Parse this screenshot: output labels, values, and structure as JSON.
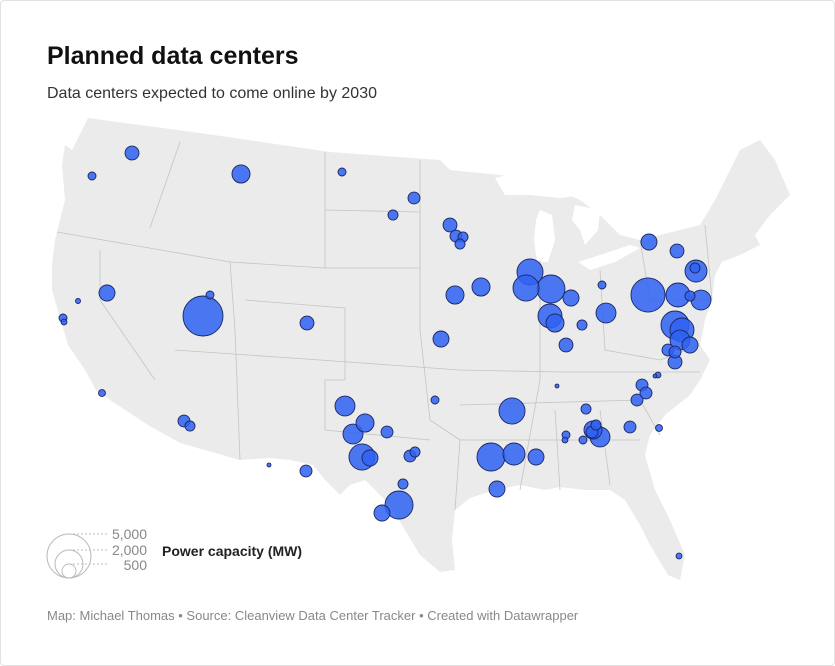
{
  "header": {
    "title": "Planned data centers",
    "subtitle": "Data centers expected to come online by 2030"
  },
  "legend": {
    "title": "Power capacity (MW)",
    "sizes": [
      {
        "label": "5,000",
        "mw": 5000
      },
      {
        "label": "2,000",
        "mw": 2000
      },
      {
        "label": "500",
        "mw": 500
      }
    ]
  },
  "colors": {
    "bubble_fill": "#2f62f3",
    "bubble_stroke": "#1b2660",
    "land": "#ebebeb",
    "border": "#c4c4c4"
  },
  "bubbles_mw": [
    500,
    165,
    840,
    165,
    370,
    260,
    660,
    65,
    165,
    90,
    4130,
    165,
    500,
    125,
    370,
    260,
    40,
    370,
    1030,
    840,
    1030,
    370,
    1750,
    660,
    370,
    260,
    2025,
    660,
    260,
    165,
    660,
    840,
    840,
    500,
    370,
    260,
    260,
    1750,
    1750,
    2025,
    1490,
    840,
    660,
    260,
    500,
    165,
    1030,
    660,
    500,
    1250,
    260,
    1030,
    3000,
    1490,
    260,
    2025,
    1490,
    1030,
    660,
    370,
    370,
    500,
    370,
    370,
    370,
    90,
    40,
    40,
    1750,
    2025,
    1250,
    660,
    660,
    165,
    90,
    165,
    260,
    840,
    1030,
    260,
    370,
    370,
    125,
    90
  ],
  "footer": "Map: Michael Thomas • Source: Cleanview Data Center Tracker • Created with Datawrapper"
}
